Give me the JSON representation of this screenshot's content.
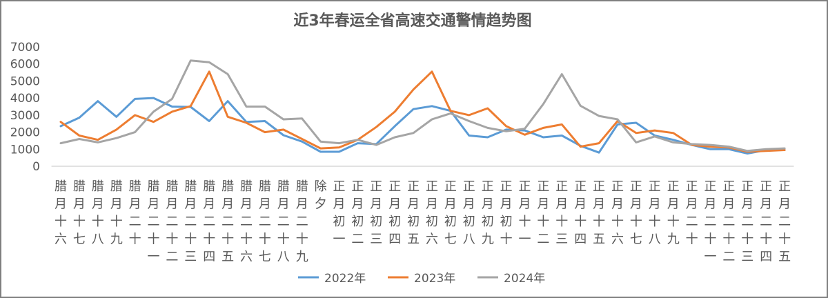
{
  "chart_data": {
    "type": "line",
    "title": "近3年春运全省高速交通警情趋势图",
    "xlabel": "",
    "ylabel": "",
    "ylim": [
      0,
      7000
    ],
    "yticks": [
      0,
      1000,
      2000,
      3000,
      4000,
      5000,
      6000,
      7000
    ],
    "grid": false,
    "legend_position": "bottom",
    "categories": [
      "腊月十六",
      "腊月十七",
      "腊月十八",
      "腊月十九",
      "腊月二十",
      "腊月二十一",
      "腊月二十二",
      "腊月二十三",
      "腊月二十四",
      "腊月二十五",
      "腊月二十六",
      "腊月二十七",
      "腊月二十八",
      "腊月二十九",
      "除夕",
      "正月初一",
      "正月初二",
      "正月初三",
      "正月初四",
      "正月初五",
      "正月初六",
      "正月初七",
      "正月初八",
      "正月初九",
      "正月初十",
      "正月十一",
      "正月十二",
      "正月十三",
      "正月十四",
      "正月十五",
      "正月十六",
      "正月十七",
      "正月十八",
      "正月十九",
      "正月二十",
      "正月二十一",
      "正月二十二",
      "正月二十三",
      "正月二十四",
      "正月二十五"
    ],
    "series": [
      {
        "name": "2022年",
        "color": "#5b9bd5",
        "values": [
          2350,
          2850,
          3820,
          2900,
          3950,
          4000,
          3500,
          3480,
          2650,
          3820,
          2600,
          2650,
          1820,
          1450,
          850,
          850,
          1350,
          1300,
          2350,
          3350,
          3530,
          3250,
          1800,
          1700,
          2150,
          2100,
          1700,
          1800,
          1200,
          800,
          2450,
          2550,
          1800,
          1550,
          1250,
          1000,
          1000,
          750,
          950,
          950
        ]
      },
      {
        "name": "2023年",
        "color": "#ed7d31",
        "values": [
          2600,
          1800,
          1550,
          2150,
          3000,
          2600,
          3200,
          3530,
          5550,
          2900,
          2550,
          2000,
          2150,
          1600,
          1050,
          1100,
          1550,
          2300,
          3200,
          4500,
          5550,
          3250,
          3000,
          3400,
          2350,
          1850,
          2250,
          2450,
          1150,
          1350,
          2650,
          1950,
          2100,
          1950,
          1250,
          1150,
          1100,
          850,
          900,
          950
        ]
      },
      {
        "name": "2024年",
        "color": "#a5a5a5",
        "values": [
          1350,
          1600,
          1400,
          1650,
          2000,
          3200,
          3950,
          6200,
          6100,
          5400,
          3500,
          3500,
          2750,
          2800,
          1450,
          1350,
          1550,
          1250,
          1700,
          1950,
          2750,
          3100,
          2650,
          2250,
          2050,
          2200,
          3650,
          5400,
          3550,
          2950,
          2750,
          1400,
          1750,
          1400,
          1300,
          1250,
          1150,
          900,
          1000,
          1050
        ]
      }
    ]
  }
}
